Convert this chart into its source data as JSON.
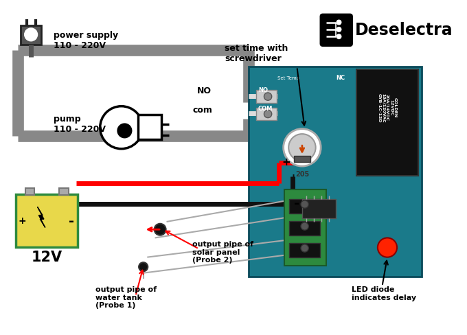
{
  "bg_color": "#ffffff",
  "fig_width": 6.8,
  "fig_height": 4.88,
  "dpi": 100,
  "labels": {
    "power_supply": "power supply\n110 - 220V",
    "pump": "pump\n110 - 220V",
    "battery_12v": "12V",
    "no_label": "NO",
    "com_label": "com",
    "set_time": "set time with\nscrewdriver",
    "probe1": "output pipe of\nwater tank\n(Probe 1)",
    "probe2": "output pipe of\nsolar panel\n(Probe 2)",
    "led": "LED diode\nindicates delay",
    "brand": "Deselectra",
    "plus": "+",
    "minus": "-"
  },
  "colors": {
    "gray_wire": "#888888",
    "red_wire": "#ff0000",
    "black_wire": "#111111",
    "white_wire": "#dddddd",
    "board_bg": "#1a7a8a",
    "relay_bg": "#111111",
    "terminal_green": "#2d8a3e",
    "battery_body": "#e8d84a",
    "battery_border": "#2d8a3e",
    "red_led": "#ff2200",
    "probe_body": "#111111"
  }
}
